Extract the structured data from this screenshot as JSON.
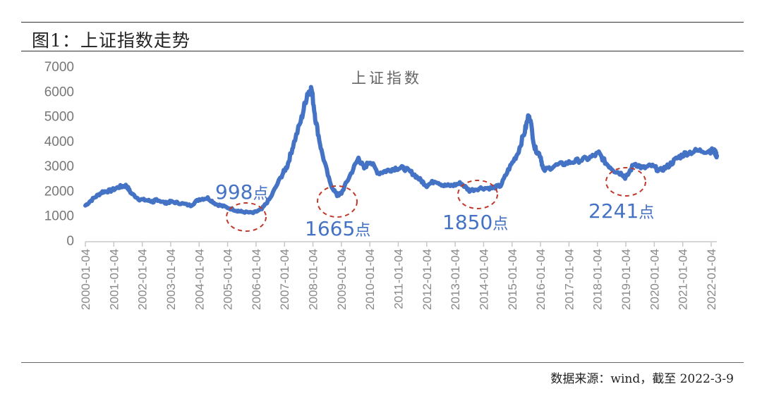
{
  "figure": {
    "title": "图1：上证指数走势",
    "source": "数据来源：wind，截至 2022-3-9"
  },
  "chart_data": {
    "type": "line",
    "title": "上证指数",
    "xlabel": "",
    "ylabel": "",
    "ylim": [
      0,
      7000
    ],
    "yticks": [
      "0",
      "1000",
      "2000",
      "3000",
      "4000",
      "5000",
      "6000",
      "7000"
    ],
    "xticks": [
      "2000-01-04",
      "2001-01-04",
      "2002-01-04",
      "2003-01-04",
      "2004-01-04",
      "2005-01-04",
      "2006-01-04",
      "2007-01-04",
      "2008-01-04",
      "2009-01-04",
      "2010-01-04",
      "2011-01-04",
      "2012-01-04",
      "2013-01-04",
      "2014-01-04",
      "2015-01-04",
      "2016-01-04",
      "2017-01-04",
      "2018-01-04",
      "2019-01-04",
      "2020-01-04",
      "2021-01-04",
      "2022-01-04"
    ],
    "grid": false,
    "legend": "none",
    "color": "#4472C4",
    "series": [
      {
        "name": "上证指数",
        "x": [
          2000.0,
          2000.3,
          2000.6,
          2000.9,
          2001.2,
          2001.45,
          2001.6,
          2001.9,
          2002.2,
          2002.4,
          2002.5,
          2002.8,
          2003.0,
          2003.3,
          2003.7,
          2004.0,
          2004.3,
          2004.6,
          2004.9,
          2005.3,
          2005.5,
          2005.9,
          2006.2,
          2006.5,
          2006.9,
          2007.1,
          2007.3,
          2007.6,
          2007.8,
          2007.95,
          2008.1,
          2008.3,
          2008.6,
          2008.85,
          2009.0,
          2009.3,
          2009.6,
          2009.8,
          2010.0,
          2010.3,
          2010.6,
          2010.9,
          2011.2,
          2011.5,
          2011.8,
          2012.0,
          2012.3,
          2012.6,
          2012.9,
          2013.2,
          2013.5,
          2013.9,
          2014.3,
          2014.6,
          2014.9,
          2015.2,
          2015.45,
          2015.6,
          2015.8,
          2016.0,
          2016.1,
          2016.5,
          2016.9,
          2017.3,
          2017.7,
          2018.05,
          2018.3,
          2018.6,
          2018.9,
          2019.0,
          2019.3,
          2019.6,
          2019.9,
          2020.2,
          2020.5,
          2020.8,
          2021.1,
          2021.5,
          2021.9,
          2022.1,
          2022.2
        ],
        "values": [
          1400,
          1700,
          1950,
          2000,
          2150,
          2200,
          1900,
          1650,
          1600,
          1550,
          1650,
          1500,
          1550,
          1500,
          1400,
          1650,
          1700,
          1450,
          1350,
          1200,
          1150,
          1100,
          1250,
          1700,
          2600,
          3000,
          3800,
          4900,
          5900,
          6100,
          4800,
          3600,
          2300,
          1800,
          1900,
          2600,
          3300,
          2900,
          3200,
          2700,
          2800,
          2900,
          2900,
          2700,
          2400,
          2200,
          2400,
          2200,
          2200,
          2300,
          2000,
          2100,
          2100,
          2200,
          2900,
          3500,
          4400,
          5100,
          3700,
          3400,
          2800,
          3000,
          3100,
          3200,
          3300,
          3500,
          3100,
          2800,
          2650,
          2500,
          3100,
          2900,
          3000,
          2800,
          3000,
          3300,
          3500,
          3600,
          3600,
          3600,
          3400
        ]
      }
    ],
    "annotations": [
      {
        "text": "998",
        "unit": "点",
        "circle_x": 2005.9,
        "circle_value": 1100
      },
      {
        "text": "1665",
        "unit": "点",
        "circle_x": 2008.85,
        "circle_value": 1900
      },
      {
        "text": "1850",
        "unit": "点",
        "circle_x": 2013.8,
        "circle_value": 2050
      },
      {
        "text": "2241",
        "unit": "点",
        "circle_x": 2018.95,
        "circle_value": 2500
      }
    ]
  }
}
